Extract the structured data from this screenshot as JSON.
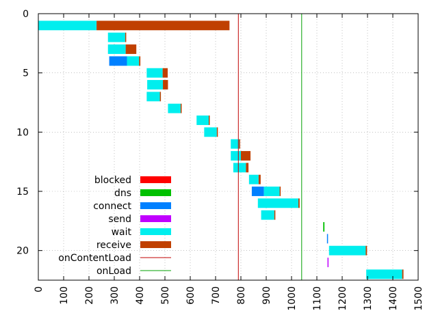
{
  "chart_data": {
    "type": "bar",
    "orientation": "horizontal-stacked",
    "xlim": [
      0,
      1500
    ],
    "ylim": [
      0,
      22.5
    ],
    "y_inverted": true,
    "grid": true,
    "legend_position": "bottom-left-inside",
    "x_ticks": [
      "0",
      "100",
      "200",
      "300",
      "400",
      "500",
      "600",
      "700",
      "800",
      "900",
      "1000",
      "1100",
      "1200",
      "1300",
      "1400",
      "1500"
    ],
    "y_ticks": [
      "0",
      "5",
      "10",
      "15",
      "20"
    ],
    "phases": [
      {
        "name": "blocked",
        "color": "#ff0000"
      },
      {
        "name": "dns",
        "color": "#00c000"
      },
      {
        "name": "connect",
        "color": "#0080ff"
      },
      {
        "name": "send",
        "color": "#c000ff"
      },
      {
        "name": "wait",
        "color": "#00eeee"
      },
      {
        "name": "receive",
        "color": "#c04000"
      }
    ],
    "markers": [
      {
        "name": "onContentLoad",
        "x": 790,
        "color": "#c00000"
      },
      {
        "name": "onLoad",
        "x": 1040,
        "color": "#00a000"
      }
    ],
    "requests": [
      {
        "row": 1,
        "start": 0,
        "dns": 0,
        "connect": 0,
        "send": 0,
        "wait": 230,
        "receive": 525
      },
      {
        "row": 2,
        "start": 275,
        "dns": 0,
        "connect": 0,
        "send": 0,
        "wait": 68,
        "receive": 2
      },
      {
        "row": 3,
        "start": 275,
        "dns": 0,
        "connect": 0,
        "send": 0,
        "wait": 70,
        "receive": 42
      },
      {
        "row": 4,
        "start": 280,
        "dns": 0,
        "connect": 70,
        "send": 0,
        "wait": 48,
        "receive": 5
      },
      {
        "row": 5,
        "start": 428,
        "dns": 0,
        "connect": 0,
        "send": 0,
        "wait": 63,
        "receive": 20
      },
      {
        "row": 6,
        "start": 430,
        "dns": 0,
        "connect": 0,
        "send": 0,
        "wait": 62,
        "receive": 20
      },
      {
        "row": 7,
        "start": 428,
        "dns": 0,
        "connect": 0,
        "send": 0,
        "wait": 52,
        "receive": 3
      },
      {
        "row": 8,
        "start": 512,
        "dns": 0,
        "connect": 0,
        "send": 0,
        "wait": 50,
        "receive": 3
      },
      {
        "row": 9,
        "start": 625,
        "dns": 0,
        "connect": 0,
        "send": 0,
        "wait": 48,
        "receive": 3
      },
      {
        "row": 10,
        "start": 655,
        "dns": 0,
        "connect": 0,
        "send": 0,
        "wait": 50,
        "receive": 3
      },
      {
        "row": 11,
        "start": 760,
        "dns": 0,
        "connect": 0,
        "send": 0,
        "wait": 33,
        "receive": 2
      },
      {
        "row": 12,
        "start": 760,
        "dns": 0,
        "connect": 0,
        "send": 0,
        "wait": 40,
        "receive": 38
      },
      {
        "row": 13,
        "start": 770,
        "dns": 0,
        "connect": 0,
        "send": 0,
        "wait": 50,
        "receive": 10
      },
      {
        "row": 14,
        "start": 832,
        "dns": 0,
        "connect": 0,
        "send": 0,
        "wait": 38,
        "receive": 8
      },
      {
        "row": 15,
        "start": 843,
        "dns": 0,
        "connect": 48,
        "send": 0,
        "wait": 62,
        "receive": 2
      },
      {
        "row": 16,
        "start": 867,
        "dns": 0,
        "connect": 0,
        "send": 0,
        "wait": 160,
        "receive": 5
      },
      {
        "row": 17,
        "start": 880,
        "dns": 0,
        "connect": 0,
        "send": 0,
        "wait": 52,
        "receive": 3
      },
      {
        "row": 18,
        "start": 1125,
        "dns": 5,
        "connect": 0,
        "send": 0,
        "wait": 0,
        "receive": 0
      },
      {
        "row": 19,
        "start": 1140,
        "dns": 0,
        "connect": 4,
        "send": 0,
        "wait": 0,
        "receive": 0
      },
      {
        "row": 20,
        "start": 1148,
        "dns": 0,
        "connect": 0,
        "send": 0,
        "wait": 145,
        "receive": 5
      },
      {
        "row": 21,
        "start": 1142,
        "dns": 0,
        "connect": 0,
        "send": 4,
        "wait": 0,
        "receive": 0
      },
      {
        "row": 22,
        "start": 1295,
        "dns": 0,
        "connect": 0,
        "send": 0,
        "wait": 142,
        "receive": 5
      }
    ]
  }
}
